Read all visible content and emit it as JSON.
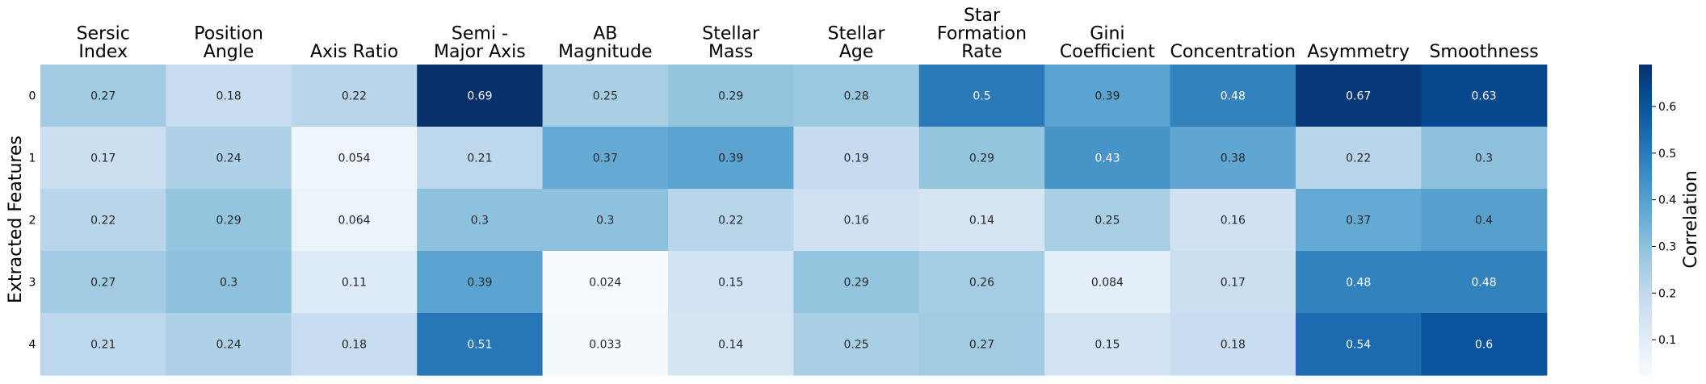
{
  "chart_data": {
    "type": "heatmap",
    "title": "",
    "xlabel": "",
    "ylabel": "Extracted Features",
    "colorbar_label": "Correlation",
    "colormap": "Blues",
    "vmin": 0.024,
    "vmax": 0.69,
    "colorbar_ticks": [
      "0.1",
      "0.2",
      "0.3",
      "0.4",
      "0.5",
      "0.6"
    ],
    "columns": [
      [
        "Sersic",
        "Index"
      ],
      [
        "Position",
        "Angle"
      ],
      [
        "Axis Ratio"
      ],
      [
        "Semi -",
        "Major Axis"
      ],
      [
        "AB",
        "Magnitude"
      ],
      [
        "Stellar",
        "Mass"
      ],
      [
        "Stellar",
        "Age"
      ],
      [
        "Star",
        "Formation",
        "Rate"
      ],
      [
        "Gini",
        "Coefficient"
      ],
      [
        "Concentration"
      ],
      [
        "Asymmetry"
      ],
      [
        "Smoothness"
      ]
    ],
    "rows": [
      "0",
      "1",
      "2",
      "3",
      "4"
    ],
    "values": [
      [
        0.27,
        0.18,
        0.22,
        0.69,
        0.25,
        0.29,
        0.28,
        0.5,
        0.39,
        0.48,
        0.67,
        0.63
      ],
      [
        0.17,
        0.24,
        0.054,
        0.21,
        0.37,
        0.39,
        0.19,
        0.29,
        0.43,
        0.38,
        0.22,
        0.3
      ],
      [
        0.22,
        0.29,
        0.064,
        0.3,
        0.3,
        0.22,
        0.16,
        0.14,
        0.25,
        0.16,
        0.37,
        0.4
      ],
      [
        0.27,
        0.3,
        0.11,
        0.39,
        0.024,
        0.15,
        0.29,
        0.26,
        0.084,
        0.17,
        0.48,
        0.48
      ],
      [
        0.21,
        0.24,
        0.18,
        0.51,
        0.033,
        0.14,
        0.25,
        0.27,
        0.15,
        0.18,
        0.54,
        0.6
      ]
    ]
  }
}
